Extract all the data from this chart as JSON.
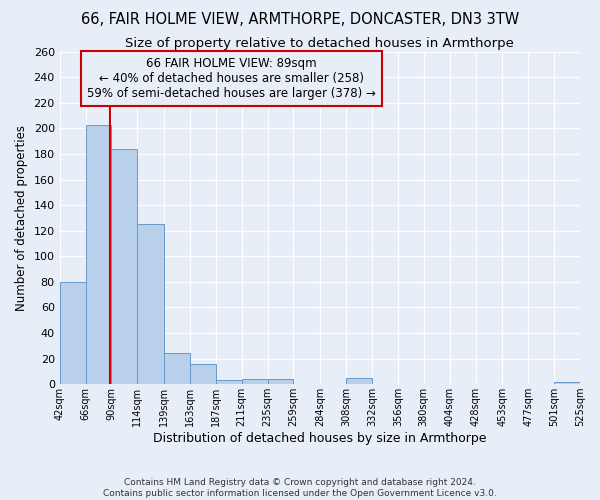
{
  "title": "66, FAIR HOLME VIEW, ARMTHORPE, DONCASTER, DN3 3TW",
  "subtitle": "Size of property relative to detached houses in Armthorpe",
  "xlabel": "Distribution of detached houses by size in Armthorpe",
  "ylabel": "Number of detached properties",
  "footer_line1": "Contains HM Land Registry data © Crown copyright and database right 2024.",
  "footer_line2": "Contains public sector information licensed under the Open Government Licence v3.0.",
  "bin_edges": [
    42,
    66,
    90,
    114,
    139,
    163,
    187,
    211,
    235,
    259,
    284,
    308,
    332,
    356,
    380,
    404,
    428,
    453,
    477,
    501,
    525
  ],
  "bar_heights": [
    80,
    203,
    184,
    125,
    24,
    16,
    3,
    4,
    4,
    0,
    0,
    5,
    0,
    0,
    0,
    0,
    0,
    0,
    0,
    2
  ],
  "bar_color": "#b8d0ea",
  "bar_edge_color": "#6699cc",
  "subject_size": 89,
  "annotation_title": "66 FAIR HOLME VIEW: 89sqm",
  "annotation_line2": "← 40% of detached houses are smaller (258)",
  "annotation_line3": "59% of semi-detached houses are larger (378) →",
  "vline_color": "#cc0000",
  "annotation_box_edge_color": "#cc0000",
  "ylim": [
    0,
    260
  ],
  "yticks": [
    0,
    20,
    40,
    60,
    80,
    100,
    120,
    140,
    160,
    180,
    200,
    220,
    240,
    260
  ],
  "bg_color": "#e8eef8",
  "grid_color": "#ffffff",
  "title_fontsize": 10.5,
  "subtitle_fontsize": 9.5,
  "ylabel_fontsize": 8.5,
  "xlabel_fontsize": 9,
  "annotation_fontsize": 8.5
}
